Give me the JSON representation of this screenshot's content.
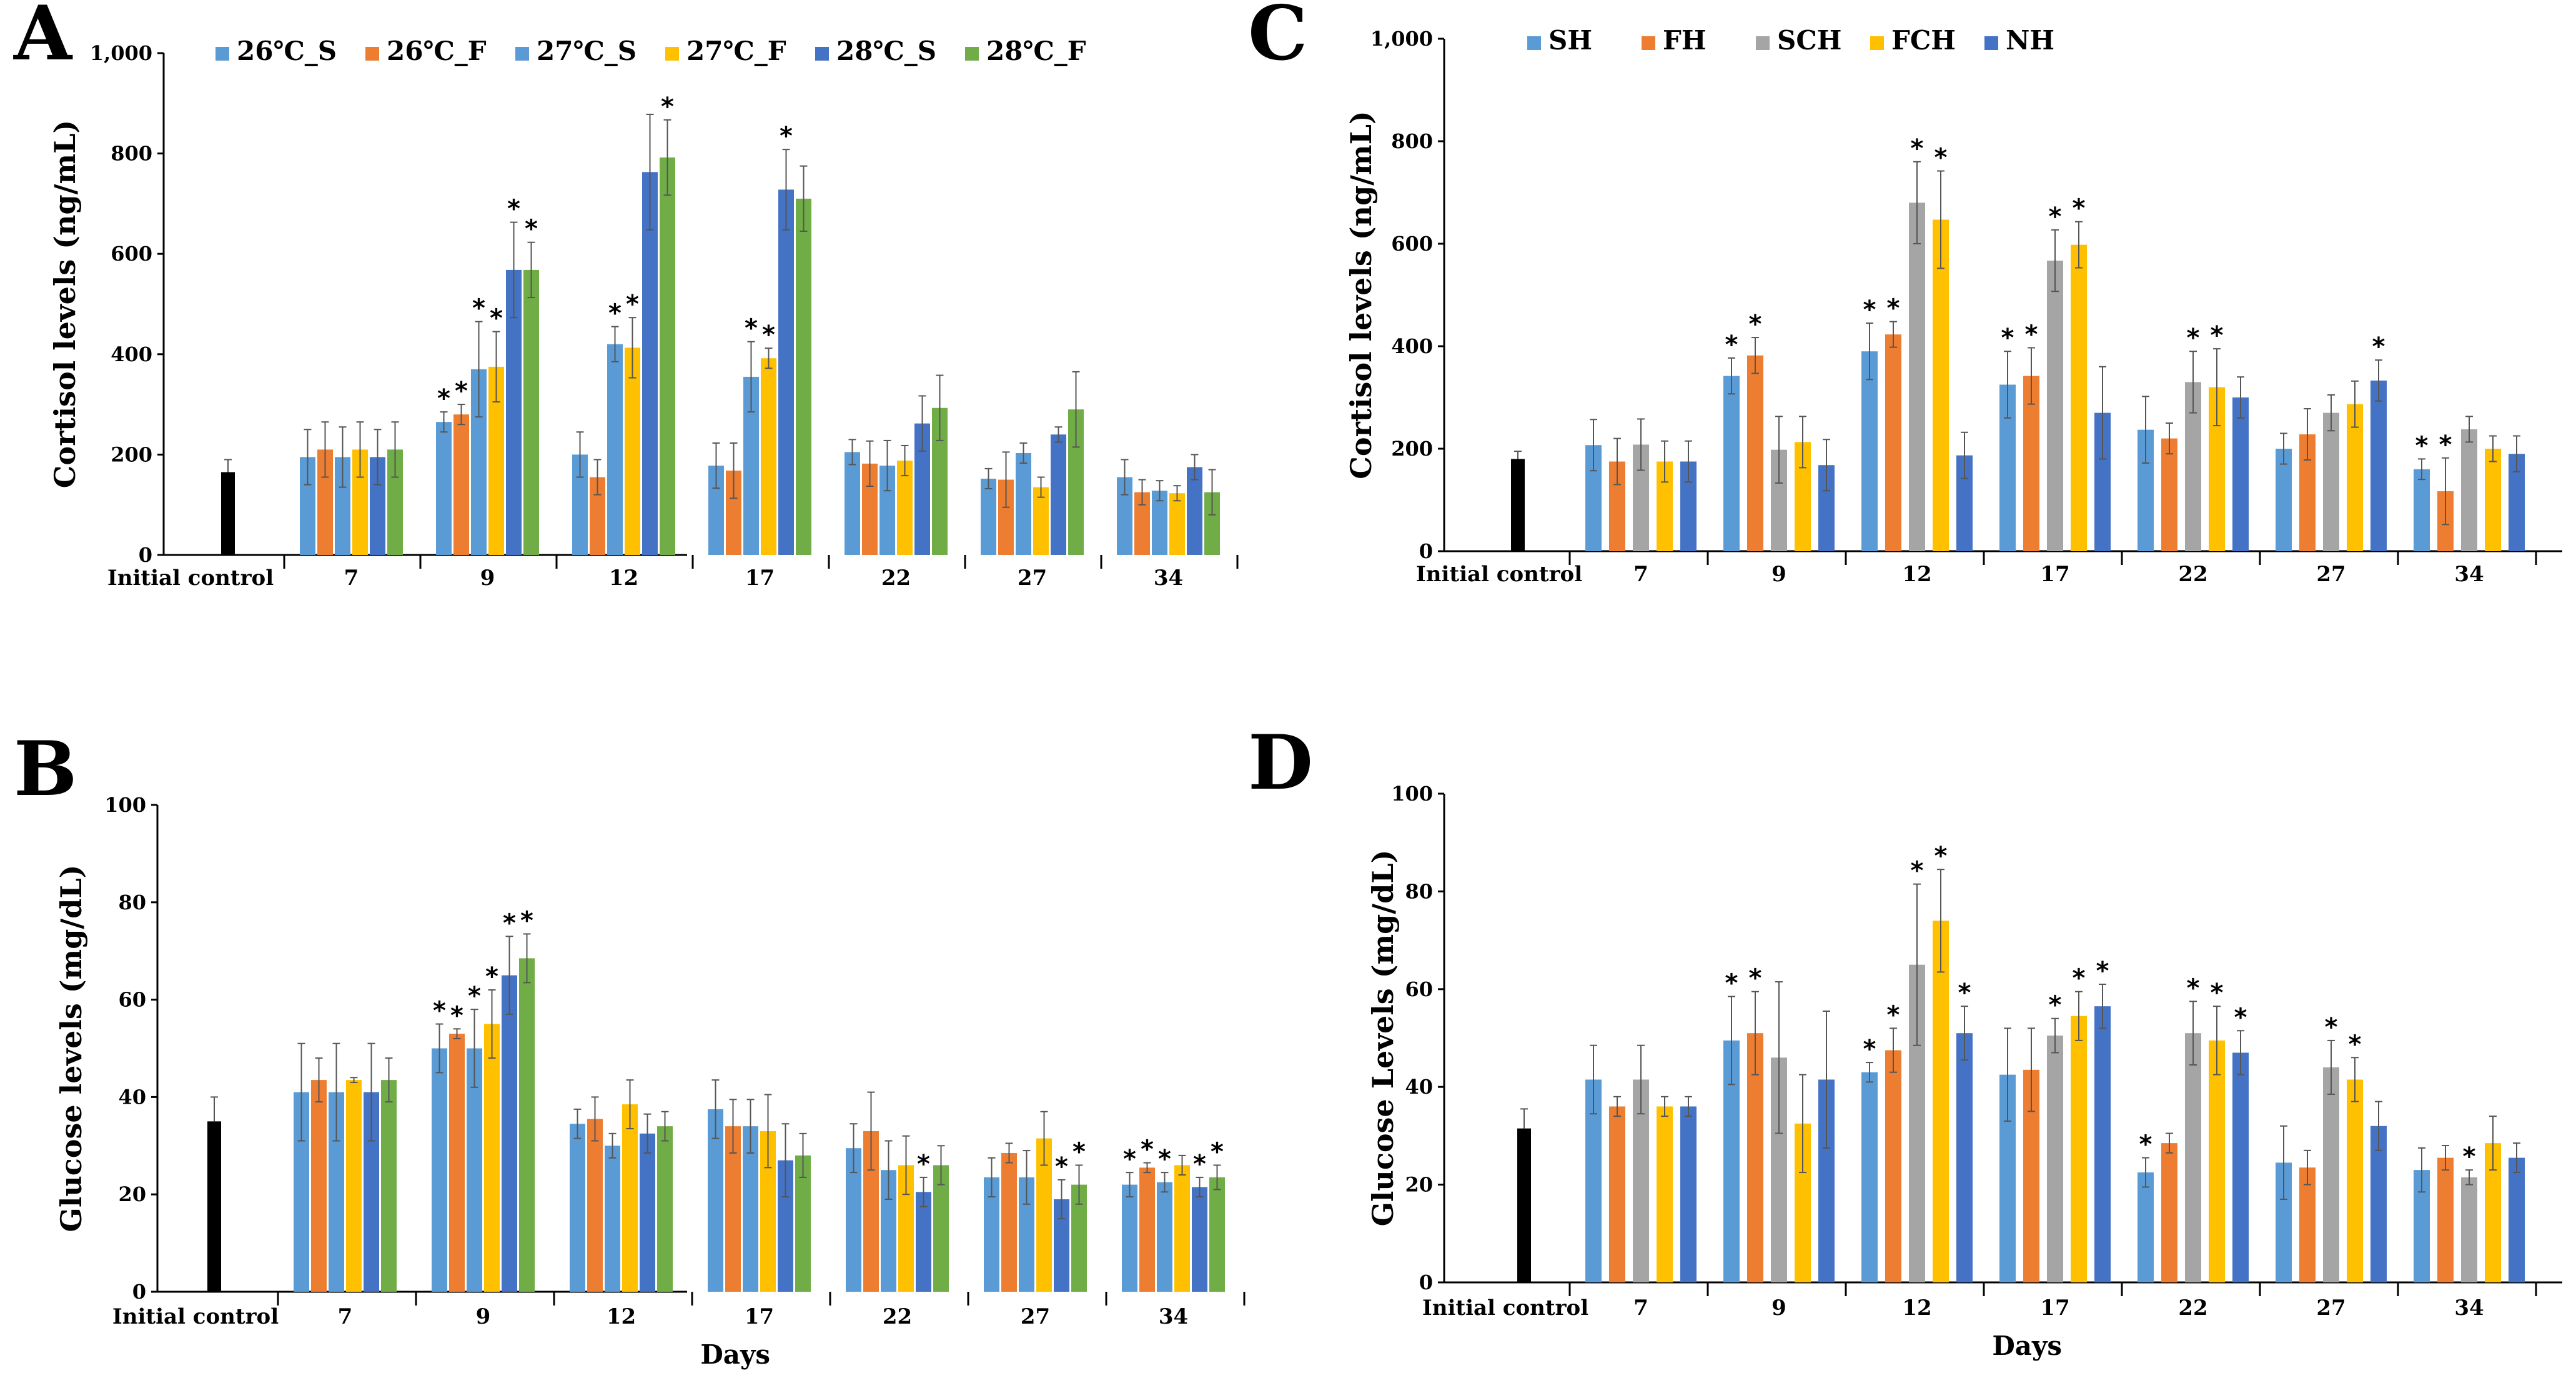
{
  "colors": {
    "s26": "#5B9BD5",
    "f26": "#ED7D31",
    "s27": "#5B9BD5",
    "f27": "#FFC000",
    "s28": "#4472C4",
    "f28": "#70AD47",
    "SH": "#5B9BD5",
    "FH": "#ED7D31",
    "SCH": "#A5A5A5",
    "FCH": "#FFC000",
    "NH": "#4472C4",
    "control": "#000000"
  },
  "chart_data": [
    {
      "panel": "A",
      "type": "bar",
      "title": "",
      "xlabel": "",
      "ylabel": "Cortisol levels (ng/mL)",
      "ylim": [
        0,
        1000
      ],
      "yticks": [
        "0",
        "200",
        "400",
        "600",
        "800",
        "1,000"
      ],
      "control": {
        "label": "Initial control",
        "value": 165,
        "err": 25
      },
      "categories": [
        "7",
        "9",
        "12",
        "17",
        "22",
        "27",
        "34"
      ],
      "legend_position": "top",
      "series": [
        {
          "name": "26℃_S",
          "color_key": "s26",
          "values": [
            195,
            265,
            200,
            178,
            205,
            152,
            155
          ],
          "errors": [
            55,
            20,
            45,
            45,
            25,
            20,
            35
          ],
          "sig": [
            false,
            true,
            false,
            false,
            false,
            false,
            false
          ]
        },
        {
          "name": "26℃_F",
          "color_key": "f26",
          "values": [
            210,
            280,
            155,
            168,
            182,
            150,
            125
          ],
          "errors": [
            55,
            20,
            35,
            55,
            45,
            55,
            25
          ],
          "sig": [
            false,
            true,
            false,
            false,
            false,
            false,
            false
          ]
        },
        {
          "name": "27℃_S",
          "color_key": "s27",
          "values": [
            195,
            370,
            420,
            355,
            178,
            203,
            128
          ],
          "errors": [
            60,
            95,
            35,
            70,
            50,
            20,
            20
          ],
          "sig": [
            false,
            true,
            true,
            true,
            false,
            false,
            false
          ]
        },
        {
          "name": "27℃_F",
          "color_key": "f27",
          "values": [
            210,
            375,
            413,
            392,
            188,
            135,
            123
          ],
          "errors": [
            55,
            70,
            60,
            20,
            30,
            20,
            15
          ],
          "sig": [
            false,
            true,
            true,
            true,
            false,
            false,
            false
          ]
        },
        {
          "name": "28℃_S",
          "color_key": "s28",
          "values": [
            195,
            568,
            763,
            728,
            262,
            240,
            175
          ],
          "errors": [
            55,
            95,
            115,
            80,
            55,
            15,
            25
          ],
          "sig": [
            false,
            true,
            false,
            true,
            false,
            false,
            false
          ]
        },
        {
          "name": "28℃_F",
          "color_key": "f28",
          "values": [
            210,
            568,
            792,
            710,
            293,
            290,
            125
          ],
          "errors": [
            55,
            55,
            75,
            65,
            65,
            75,
            45
          ],
          "sig": [
            false,
            true,
            true,
            false,
            false,
            false,
            false
          ]
        }
      ]
    },
    {
      "panel": "B",
      "type": "bar",
      "title": "",
      "xlabel": "Days",
      "ylabel": "Glucose levels (mg/dL)",
      "ylim": [
        0,
        100
      ],
      "yticks": [
        "0",
        "20",
        "40",
        "60",
        "80",
        "100"
      ],
      "control": {
        "label": "Initial control",
        "value": 35,
        "err": 5
      },
      "categories": [
        "7",
        "9",
        "12",
        "17",
        "22",
        "27",
        "34"
      ],
      "legend_position": "none",
      "series": [
        {
          "name": "26℃_S",
          "color_key": "s26",
          "values": [
            41,
            50,
            34.5,
            37.5,
            29.5,
            23.5,
            22
          ],
          "errors": [
            10,
            5,
            3,
            6,
            5,
            4,
            2.5
          ],
          "sig": [
            false,
            true,
            false,
            false,
            false,
            false,
            true
          ]
        },
        {
          "name": "26℃_F",
          "color_key": "f26",
          "values": [
            43.5,
            53,
            35.5,
            34,
            33,
            28.5,
            25.5
          ],
          "errors": [
            4.5,
            1,
            4.5,
            5.5,
            8,
            2,
            1
          ],
          "sig": [
            false,
            true,
            false,
            false,
            false,
            false,
            true
          ]
        },
        {
          "name": "27℃_S",
          "color_key": "s27",
          "values": [
            41,
            50,
            30,
            34,
            25,
            23.5,
            22.5
          ],
          "errors": [
            10,
            8,
            2.5,
            5.5,
            6,
            5.5,
            2
          ],
          "sig": [
            false,
            true,
            false,
            false,
            false,
            false,
            true
          ]
        },
        {
          "name": "27℃_F",
          "color_key": "f27",
          "values": [
            43.5,
            55,
            38.5,
            33,
            26,
            31.5,
            26
          ],
          "errors": [
            0.5,
            7,
            5,
            7.5,
            6,
            5.5,
            2
          ],
          "sig": [
            false,
            true,
            false,
            false,
            false,
            false,
            false
          ]
        },
        {
          "name": "28℃_S",
          "color_key": "s28",
          "values": [
            41,
            65,
            32.5,
            27,
            20.5,
            19,
            21.5
          ],
          "errors": [
            10,
            8,
            4,
            7.5,
            3,
            4,
            2
          ],
          "sig": [
            false,
            true,
            false,
            false,
            true,
            true,
            true
          ]
        },
        {
          "name": "28℃_F",
          "color_key": "f28",
          "values": [
            43.5,
            68.5,
            34,
            28,
            26,
            22,
            23.5
          ],
          "errors": [
            4.5,
            5,
            3,
            4.5,
            4,
            4,
            2.5
          ],
          "sig": [
            false,
            true,
            false,
            false,
            false,
            true,
            true
          ]
        }
      ]
    },
    {
      "panel": "C",
      "type": "bar",
      "title": "",
      "xlabel": "",
      "ylabel": "Cortisol levels (ng/mL)",
      "ylim": [
        0,
        1000
      ],
      "yticks": [
        "0",
        "200",
        "400",
        "600",
        "800",
        "1,000"
      ],
      "control": {
        "label": "Initial control",
        "value": 180,
        "err": 15
      },
      "categories": [
        "7",
        "9",
        "12",
        "17",
        "22",
        "27",
        "34"
      ],
      "legend_position": "top",
      "series": [
        {
          "name": "SH",
          "color_key": "SH",
          "values": [
            207,
            342,
            390,
            325,
            237,
            200,
            160
          ],
          "errors": [
            50,
            35,
            55,
            65,
            65,
            30,
            20
          ],
          "sig": [
            false,
            true,
            true,
            true,
            false,
            false,
            true
          ]
        },
        {
          "name": "FH",
          "color_key": "FH",
          "values": [
            175,
            382,
            423,
            342,
            220,
            228,
            117
          ],
          "errors": [
            45,
            35,
            25,
            55,
            30,
            50,
            65
          ],
          "sig": [
            false,
            true,
            true,
            true,
            false,
            false,
            true
          ]
        },
        {
          "name": "SCH",
          "color_key": "SCH",
          "values": [
            208,
            198,
            680,
            567,
            330,
            270,
            238
          ],
          "errors": [
            50,
            65,
            80,
            60,
            60,
            35,
            25
          ],
          "sig": [
            false,
            false,
            true,
            true,
            true,
            false,
            false
          ]
        },
        {
          "name": "FCH",
          "color_key": "FCH",
          "values": [
            175,
            213,
            647,
            598,
            320,
            287,
            200
          ],
          "errors": [
            40,
            50,
            95,
            45,
            75,
            45,
            25
          ],
          "sig": [
            false,
            false,
            true,
            true,
            true,
            false,
            false
          ]
        },
        {
          "name": "NH",
          "color_key": "NH",
          "values": [
            175,
            168,
            187,
            270,
            300,
            333,
            190
          ],
          "errors": [
            40,
            50,
            45,
            90,
            40,
            40,
            35
          ],
          "sig": [
            false,
            false,
            false,
            false,
            false,
            true,
            false
          ]
        }
      ]
    },
    {
      "panel": "D",
      "type": "bar",
      "title": "",
      "xlabel": "Days",
      "ylabel": "Glucose Levels (mg/dL)",
      "ylim": [
        0,
        100
      ],
      "yticks": [
        "0",
        "20",
        "40",
        "60",
        "80",
        "100"
      ],
      "control": {
        "label": "Initial control",
        "value": 31.5,
        "err": 4
      },
      "categories": [
        "7",
        "9",
        "12",
        "17",
        "22",
        "27",
        "34"
      ],
      "legend_position": "none",
      "series": [
        {
          "name": "SH",
          "color_key": "SH",
          "values": [
            41.5,
            49.5,
            43,
            42.5,
            22.5,
            24.5,
            23
          ],
          "errors": [
            7,
            9,
            2,
            9.5,
            3,
            7.5,
            4.5
          ],
          "sig": [
            false,
            true,
            true,
            false,
            true,
            false,
            false
          ]
        },
        {
          "name": "FH",
          "color_key": "FH",
          "values": [
            36,
            51,
            47.5,
            43.5,
            28.5,
            23.5,
            25.5
          ],
          "errors": [
            2,
            8.5,
            4.5,
            8.5,
            2,
            3.5,
            2.5
          ],
          "sig": [
            false,
            true,
            true,
            false,
            false,
            false,
            false
          ]
        },
        {
          "name": "SCH",
          "color_key": "SCH",
          "values": [
            41.5,
            46,
            65,
            50.5,
            51,
            44,
            21.5
          ],
          "errors": [
            7,
            15.5,
            16.5,
            3.5,
            6.5,
            5.5,
            1.5
          ],
          "sig": [
            false,
            false,
            true,
            true,
            true,
            true,
            true
          ]
        },
        {
          "name": "FCH",
          "color_key": "FCH",
          "values": [
            36,
            32.5,
            74,
            54.5,
            49.5,
            41.5,
            28.5
          ],
          "errors": [
            2,
            10,
            10.5,
            5,
            7,
            4.5,
            5.5
          ],
          "sig": [
            false,
            false,
            true,
            true,
            true,
            true,
            false
          ]
        },
        {
          "name": "NH",
          "color_key": "NH",
          "values": [
            36,
            41.5,
            51,
            56.5,
            47,
            32,
            25.5
          ],
          "errors": [
            2,
            14,
            5.5,
            4.5,
            4.5,
            5,
            3
          ],
          "sig": [
            false,
            false,
            true,
            true,
            true,
            false,
            false
          ]
        }
      ]
    }
  ]
}
